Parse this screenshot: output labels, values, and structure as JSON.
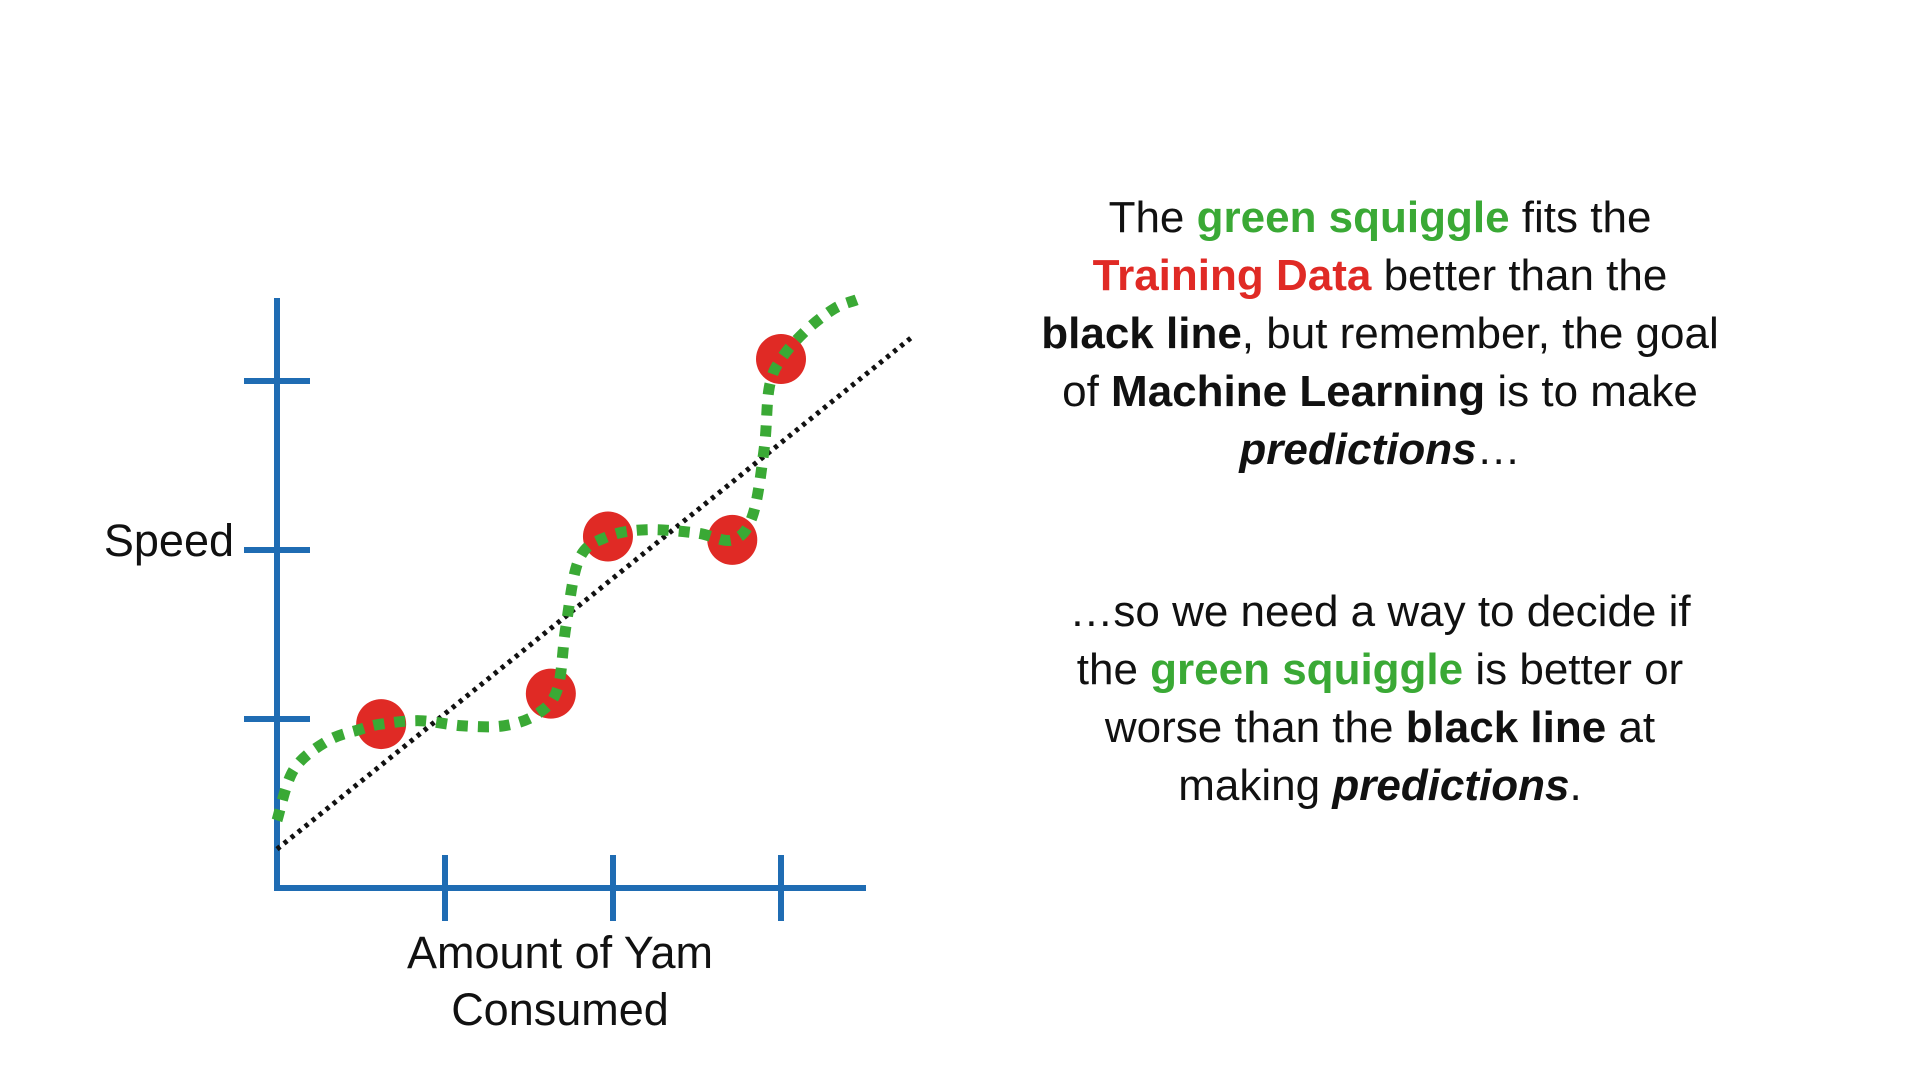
{
  "chart_data": {
    "type": "scatter",
    "xlabel": "Amount of Yam Consumed",
    "ylabel": "Speed",
    "xlim": [
      0,
      3.5
    ],
    "ylim": [
      0,
      3.0
    ],
    "xticks": [
      1,
      2,
      3
    ],
    "yticks": [
      1,
      2,
      3
    ],
    "points": [
      {
        "x": 0.62,
        "y": 0.97
      },
      {
        "x": 1.63,
        "y": 1.15
      },
      {
        "x": 1.97,
        "y": 2.08
      },
      {
        "x": 2.71,
        "y": 2.06
      },
      {
        "x": 3.0,
        "y": 3.13
      }
    ],
    "series": [
      {
        "kind": "fit-line",
        "x": [
          0,
          3.78
        ],
        "y": [
          0.23,
          3.26
        ]
      },
      {
        "kind": "squiggle",
        "x": [
          0,
          0.1,
          0.3,
          0.5,
          0.62,
          0.85,
          1.1,
          1.35,
          1.55,
          1.67,
          1.72,
          1.8,
          1.97,
          2.2,
          2.5,
          2.71,
          2.83,
          2.9,
          2.93,
          3.0,
          3.15,
          3.32,
          3.45
        ],
        "y": [
          0.4,
          0.7,
          0.87,
          0.94,
          0.97,
          0.99,
          0.96,
          0.96,
          1.03,
          1.18,
          1.55,
          1.95,
          2.08,
          2.12,
          2.1,
          2.06,
          2.2,
          2.6,
          2.96,
          3.13,
          3.3,
          3.43,
          3.48
        ]
      }
    ],
    "colors": {
      "axis": "#1f6cb3",
      "points": "#e02a25",
      "squiggle": "#3aa935",
      "line": "#111111"
    }
  },
  "text": {
    "para1": {
      "l1_a": "The ",
      "l1_b": "green squiggle",
      "l1_c": " fits the",
      "l2_a": "Training Data",
      "l2_b": " better than the",
      "l3_a": "black line",
      "l3_b": ", but remember, the goal",
      "l4_a": "of ",
      "l4_b": "Machine Learning",
      "l4_c": " is to make",
      "l5_a": "predictions",
      "l5_b": "…"
    },
    "para2": {
      "l1_a": "…so we need a way to decide if",
      "l2_a": "the ",
      "l2_b": "green squiggle",
      "l2_c": " is better or",
      "l3_a": "worse than the ",
      "l3_b": "black line",
      "l3_c": " at",
      "l4_a": "making ",
      "l4_b": "predictions",
      "l4_c": "."
    }
  }
}
